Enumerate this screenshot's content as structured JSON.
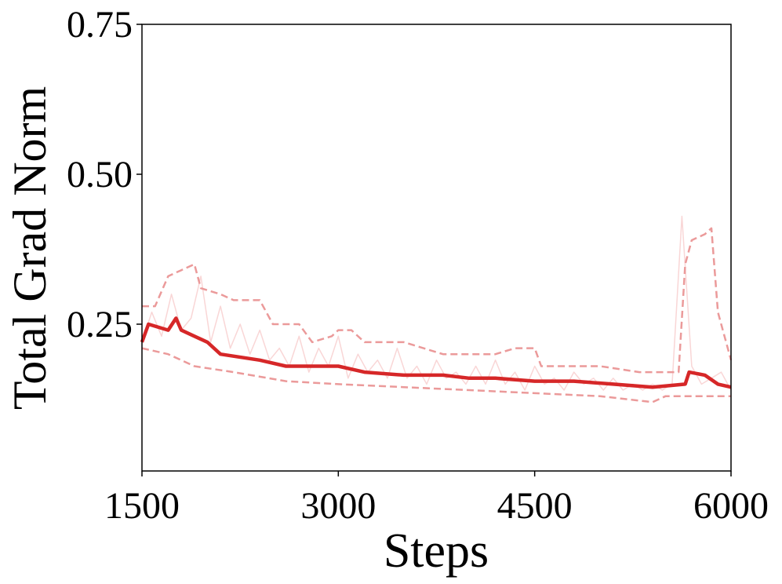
{
  "chart_data": {
    "type": "line",
    "x_label": "Steps",
    "y_label": "Total Grad Norm",
    "xlim": [
      1500,
      6000
    ],
    "ylim": [
      0,
      0.75
    ],
    "xticks": [
      1500,
      3000,
      4500,
      6000
    ],
    "yticks": [
      {
        "value": 0.25,
        "label": "0.25"
      },
      {
        "value": 0.5,
        "label": "0.50"
      },
      {
        "value": 0.75,
        "label": "0.75"
      }
    ],
    "grid": false,
    "series": [
      {
        "color": "#f7cccc",
        "style": "raw",
        "x": [
          1500,
          1575,
          1650,
          1725,
          1800,
          1875,
          1950,
          2025,
          2100,
          2175,
          2250,
          2325,
          2400,
          2475,
          2550,
          2625,
          2700,
          2775,
          2850,
          2925,
          3000,
          3075,
          3150,
          3225,
          3300,
          3375,
          3450,
          3525,
          3600,
          3675,
          3750,
          3825,
          3900,
          3975,
          4050,
          4125,
          4200,
          4275,
          4350,
          4425,
          4500,
          4575,
          4650,
          4725,
          4800,
          4875,
          4950,
          5025,
          5100,
          5175,
          5250,
          5325,
          5400,
          5475,
          5550,
          5625,
          5700,
          5775,
          5850,
          5925,
          6000
        ],
        "values": [
          0.22,
          0.27,
          0.23,
          0.3,
          0.24,
          0.26,
          0.33,
          0.22,
          0.28,
          0.21,
          0.25,
          0.2,
          0.24,
          0.19,
          0.21,
          0.18,
          0.23,
          0.17,
          0.21,
          0.18,
          0.23,
          0.16,
          0.2,
          0.17,
          0.19,
          0.16,
          0.21,
          0.16,
          0.18,
          0.15,
          0.19,
          0.16,
          0.17,
          0.15,
          0.18,
          0.15,
          0.19,
          0.15,
          0.17,
          0.14,
          0.18,
          0.15,
          0.16,
          0.14,
          0.17,
          0.15,
          0.16,
          0.14,
          0.16,
          0.14,
          0.15,
          0.14,
          0.15,
          0.14,
          0.15,
          0.43,
          0.18,
          0.15,
          0.16,
          0.17,
          0.14
        ]
      },
      {
        "color": "#eb9a9a",
        "style": "dashed",
        "x": [
          1500,
          1600,
          1700,
          1800,
          1900,
          1950,
          2100,
          2200,
          2400,
          2500,
          2700,
          2800,
          2950,
          3000,
          3100,
          3200,
          3300,
          3500,
          3800,
          4200,
          4350,
          4500,
          4550,
          5000,
          5300,
          5600,
          5650,
          5700,
          5800,
          5850,
          5900,
          6000
        ],
        "values": [
          0.28,
          0.28,
          0.33,
          0.34,
          0.35,
          0.31,
          0.3,
          0.29,
          0.29,
          0.25,
          0.25,
          0.22,
          0.23,
          0.24,
          0.24,
          0.22,
          0.22,
          0.22,
          0.2,
          0.2,
          0.21,
          0.21,
          0.18,
          0.18,
          0.17,
          0.17,
          0.35,
          0.39,
          0.4,
          0.41,
          0.27,
          0.19
        ]
      },
      {
        "color": "#eb9a9a",
        "style": "dashed",
        "x": [
          1500,
          1700,
          1900,
          2200,
          2600,
          3000,
          3500,
          4000,
          4500,
          5000,
          5400,
          5500,
          5700,
          6000
        ],
        "values": [
          0.21,
          0.2,
          0.18,
          0.17,
          0.155,
          0.15,
          0.145,
          0.14,
          0.135,
          0.13,
          0.12,
          0.13,
          0.13,
          0.13
        ]
      },
      {
        "color": "#d62728",
        "style": "mean",
        "x": [
          1500,
          1550,
          1700,
          1760,
          1800,
          1900,
          2000,
          2100,
          2400,
          2600,
          2800,
          3000,
          3200,
          3500,
          3800,
          4000,
          4200,
          4500,
          4800,
          5100,
          5400,
          5650,
          5680,
          5800,
          5900,
          6000
        ],
        "values": [
          0.22,
          0.25,
          0.24,
          0.26,
          0.24,
          0.23,
          0.22,
          0.2,
          0.19,
          0.18,
          0.18,
          0.18,
          0.17,
          0.165,
          0.165,
          0.16,
          0.16,
          0.155,
          0.155,
          0.15,
          0.145,
          0.15,
          0.17,
          0.165,
          0.15,
          0.145
        ]
      }
    ]
  }
}
